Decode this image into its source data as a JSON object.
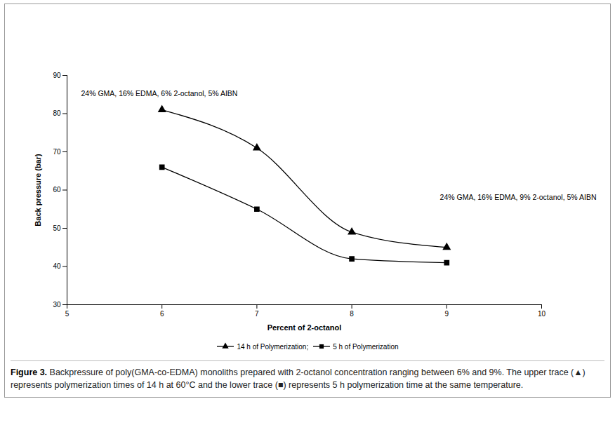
{
  "chart_data": {
    "type": "line",
    "x_label": "Percent of 2-octanol",
    "y_label": "Back pressure (bar)",
    "x": [
      6,
      7,
      8,
      9
    ],
    "series": [
      {
        "name": "14 h of Polymerization;",
        "color": "#000000",
        "marker": "triangle",
        "line_style": "solid",
        "values": [
          81,
          71,
          49,
          45
        ]
      },
      {
        "name": "5 h of Polymerization",
        "color": "#000000",
        "marker": "square",
        "line_style": "solid",
        "values": [
          66,
          55,
          42,
          41
        ]
      }
    ],
    "xlim": [
      5,
      10
    ],
    "ylim": [
      30,
      90
    ],
    "xticks": [
      5,
      6,
      7,
      8,
      9,
      10
    ],
    "yticks": [
      30,
      40,
      50,
      60,
      70,
      80,
      90
    ],
    "annotations": [
      "24% GMA, 16% EDMA, 6% 2-octanol, 5% AIBN",
      "24% GMA, 16% EDMA, 9% 2-octanol, 5% AIBN"
    ],
    "grid": false,
    "legend": "bottom",
    "caption_label": "Figure 3.",
    "caption": "Backpressure of poly(GMA-co-EDMA) monoliths prepared with 2-octanol concentration ranging between 6% and 9%. The upper trace (▲) represents polymerization times of 14 h at 60°C and the lower trace (■) represents 5 h polymerization time at the same temperature."
  }
}
